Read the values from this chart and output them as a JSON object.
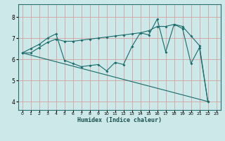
{
  "xlabel": "Humidex (Indice chaleur)",
  "bg_color": "#cce8e8",
  "grid_color": "#d4a0a0",
  "line_color": "#1a6b6b",
  "xlim": [
    -0.5,
    23.5
  ],
  "ylim": [
    3.6,
    8.6
  ],
  "xticks": [
    0,
    1,
    2,
    3,
    4,
    5,
    6,
    7,
    8,
    9,
    10,
    11,
    12,
    13,
    14,
    15,
    16,
    17,
    18,
    19,
    20,
    21,
    22,
    23
  ],
  "yticks": [
    4,
    5,
    6,
    7,
    8
  ],
  "series1_x": [
    0,
    1,
    2,
    3,
    4,
    5,
    6,
    7,
    8,
    9,
    10,
    11,
    12,
    13,
    14,
    15,
    16,
    17,
    18,
    19,
    20,
    21,
    22
  ],
  "series1_y": [
    6.3,
    6.5,
    6.7,
    7.0,
    7.2,
    5.95,
    5.8,
    5.65,
    5.7,
    5.75,
    5.45,
    5.85,
    5.75,
    6.6,
    7.25,
    7.15,
    7.9,
    6.35,
    7.65,
    7.45,
    5.8,
    6.55,
    4.0
  ],
  "series2_x": [
    0,
    1,
    2,
    3,
    4,
    5,
    6,
    7,
    8,
    9,
    10,
    11,
    12,
    13,
    14,
    15,
    16,
    17,
    18,
    19,
    20,
    21,
    22
  ],
  "series2_y": [
    6.3,
    6.3,
    6.55,
    6.8,
    6.95,
    6.85,
    6.85,
    6.9,
    6.95,
    7.0,
    7.05,
    7.1,
    7.15,
    7.2,
    7.25,
    7.35,
    7.55,
    7.55,
    7.65,
    7.55,
    7.1,
    6.65,
    4.0
  ],
  "series3_x": [
    0,
    22
  ],
  "series3_y": [
    6.3,
    4.0
  ]
}
